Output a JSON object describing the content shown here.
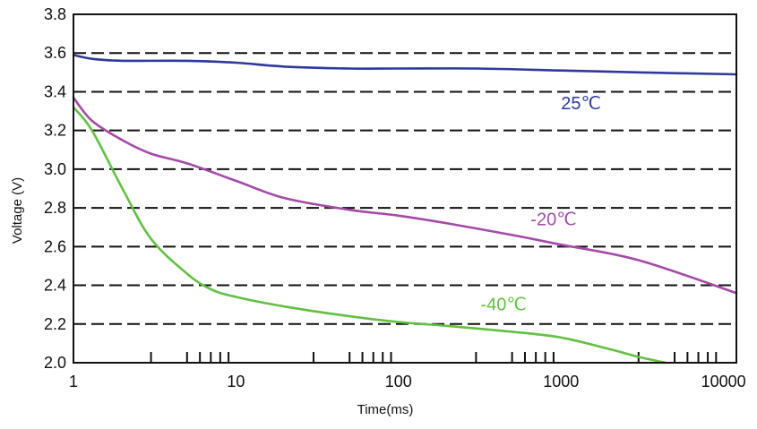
{
  "chart_data": {
    "type": "line",
    "title": "",
    "xlabel": "Time(ms)",
    "ylabel": "Voltage (V)",
    "x_scale": "log",
    "xlim": [
      1,
      12000
    ],
    "ylim": [
      2.0,
      3.8
    ],
    "x_ticks": [
      1,
      10,
      100,
      1000,
      10000
    ],
    "x_tick_labels": [
      "1",
      "10",
      "100",
      "1000",
      "10000"
    ],
    "y_ticks": [
      2.0,
      2.2,
      2.4,
      2.6,
      2.8,
      3.0,
      3.2,
      3.4,
      3.6,
      3.8
    ],
    "y_tick_labels": [
      "2.0",
      "2.2",
      "2.4",
      "2.6",
      "2.8",
      "3.0",
      "3.2",
      "3.4",
      "3.6",
      "3.8"
    ],
    "grid": "horizontal dashed",
    "legend": "none",
    "series": [
      {
        "name": "25℃",
        "color": "#2e3a9b",
        "x": [
          1,
          1.3,
          2,
          5,
          10,
          20,
          50,
          100,
          300,
          1000,
          3000,
          12000
        ],
        "y": [
          3.59,
          3.57,
          3.56,
          3.56,
          3.55,
          3.53,
          3.52,
          3.52,
          3.52,
          3.51,
          3.5,
          3.49
        ]
      },
      {
        "name": "-20℃",
        "color": "#a54aa8",
        "x": [
          1,
          1.3,
          2,
          3,
          5,
          10,
          20,
          50,
          100,
          200,
          500,
          1000,
          3000,
          12000
        ],
        "y": [
          3.37,
          3.25,
          3.15,
          3.08,
          3.03,
          2.94,
          2.85,
          2.79,
          2.76,
          2.72,
          2.66,
          2.61,
          2.53,
          2.36
        ]
      },
      {
        "name": "-40℃",
        "color": "#62c142",
        "x": [
          1,
          1.3,
          2,
          3,
          5,
          7,
          10,
          20,
          50,
          100,
          200,
          500,
          1000,
          2000,
          3000,
          4400
        ],
        "y": [
          3.32,
          3.2,
          2.9,
          2.64,
          2.46,
          2.38,
          2.34,
          2.29,
          2.24,
          2.21,
          2.19,
          2.16,
          2.13,
          2.07,
          2.03,
          2.0
        ]
      }
    ],
    "annotations": [
      {
        "text": "25℃",
        "x": 1000,
        "y": 3.31,
        "color": "#2e3a9b"
      },
      {
        "text": "-20℃",
        "x": 650,
        "y": 2.71,
        "color": "#a54aa8"
      },
      {
        "text": "-40℃",
        "x": 320,
        "y": 2.27,
        "color": "#62c142"
      }
    ]
  }
}
